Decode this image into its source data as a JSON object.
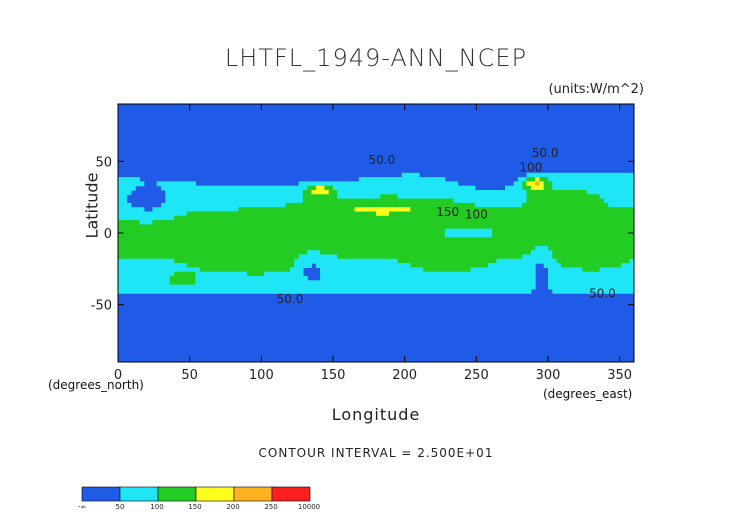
{
  "chart_data": {
    "type": "heatmap",
    "title": "LHTFL_1949-ANN_NCEP",
    "units_label": "(units:W/m^2)",
    "xlabel": "Longitude",
    "ylabel": "Latitude",
    "x_axis_note": "(degrees_east)",
    "y_axis_note": "(degrees_north)",
    "xlim": [
      0,
      360
    ],
    "ylim": [
      -90,
      90
    ],
    "x_ticks": [
      0,
      50,
      100,
      150,
      200,
      250,
      300,
      350
    ],
    "y_ticks": [
      -50,
      0,
      50
    ],
    "contour_interval_text": "CONTOUR INTERVAL = 2.500E+01",
    "contour_labels": [
      {
        "text": "50.0",
        "x": 184,
        "y": 48
      },
      {
        "text": "50.0",
        "x": 298,
        "y": 53
      },
      {
        "text": "100",
        "x": 288,
        "y": 43
      },
      {
        "text": "150",
        "x": 230,
        "y": 12
      },
      {
        "text": "100",
        "x": 250,
        "y": 10
      },
      {
        "text": "50.0",
        "x": 120,
        "y": -49
      },
      {
        "text": "50.0",
        "x": 338,
        "y": -45
      }
    ],
    "color_bins": [
      {
        "from": "-inf",
        "to": 50,
        "color": "#1f5be6"
      },
      {
        "from": 50,
        "to": 100,
        "color": "#1fe6f6"
      },
      {
        "from": 100,
        "to": 150,
        "color": "#22cc22"
      },
      {
        "from": 150,
        "to": 200,
        "color": "#ffff1f"
      },
      {
        "from": 200,
        "to": 250,
        "color": "#ffb21f"
      },
      {
        "from": 250,
        "to": 10000,
        "color": "#ff1f1f"
      }
    ],
    "legend_labels": [
      "-∞",
      "50",
      "100",
      "150",
      "200",
      "250",
      "10000"
    ]
  }
}
